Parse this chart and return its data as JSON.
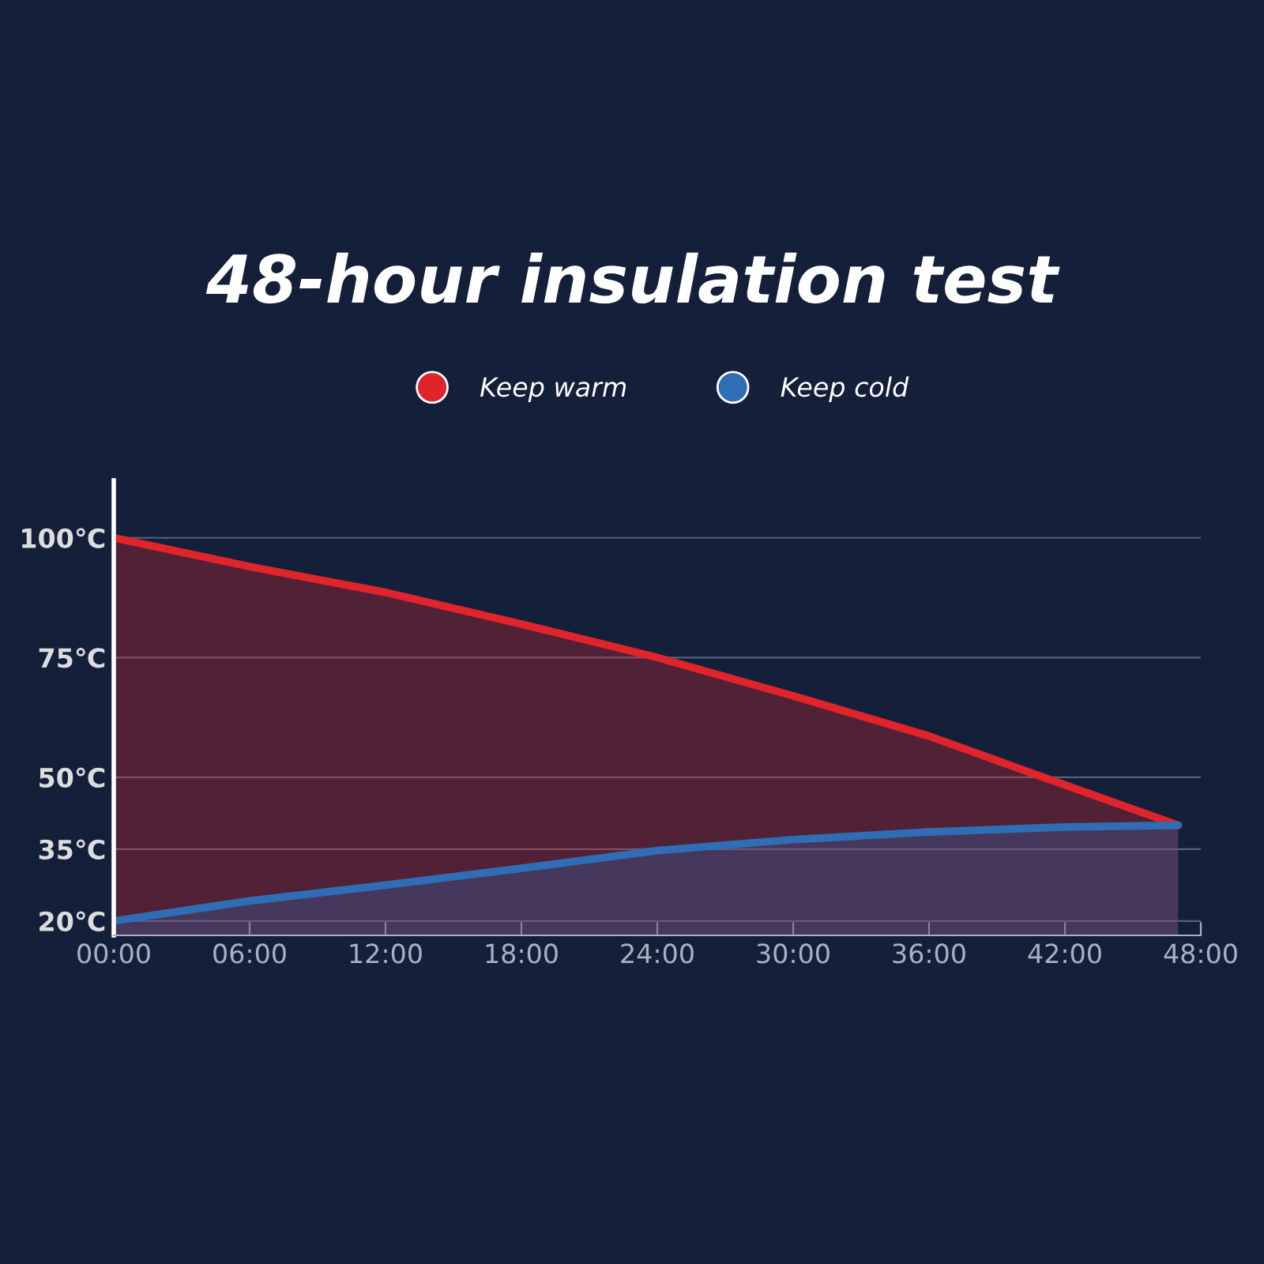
{
  "chart_data": {
    "type": "area",
    "title": "48-hour insulation test",
    "x": [
      0,
      6,
      12,
      18,
      24,
      30,
      36,
      42,
      47
    ],
    "series": [
      {
        "name": "Keep warm",
        "color": "#e0242c",
        "values": [
          100,
          94,
          88.6,
          82,
          75,
          67,
          58.6,
          48.4,
          40
        ]
      },
      {
        "name": "Keep cold",
        "color": "#2f6db5",
        "values": [
          20,
          24.2,
          27.5,
          31,
          34.7,
          37,
          38.6,
          39.6,
          40
        ]
      }
    ],
    "xlim": [
      0,
      48
    ],
    "xticks": [
      {
        "value": 0,
        "label": "00:00"
      },
      {
        "value": 6,
        "label": "06:00"
      },
      {
        "value": 12,
        "label": "12:00"
      },
      {
        "value": 18,
        "label": "18:00"
      },
      {
        "value": 24,
        "label": "24:00"
      },
      {
        "value": 30,
        "label": "30:00"
      },
      {
        "value": 36,
        "label": "36:00"
      },
      {
        "value": 42,
        "label": "42:00"
      },
      {
        "value": 48,
        "label": "48:00"
      }
    ],
    "ylim": [
      17,
      112
    ],
    "yticks": [
      {
        "value": 20,
        "label": "20℃"
      },
      {
        "value": 35,
        "label": "35℃"
      },
      {
        "value": 50,
        "label": "50℃"
      },
      {
        "value": 75,
        "label": "75℃"
      },
      {
        "value": 100,
        "label": "100℃"
      }
    ],
    "grid": "y",
    "legend": "top"
  }
}
